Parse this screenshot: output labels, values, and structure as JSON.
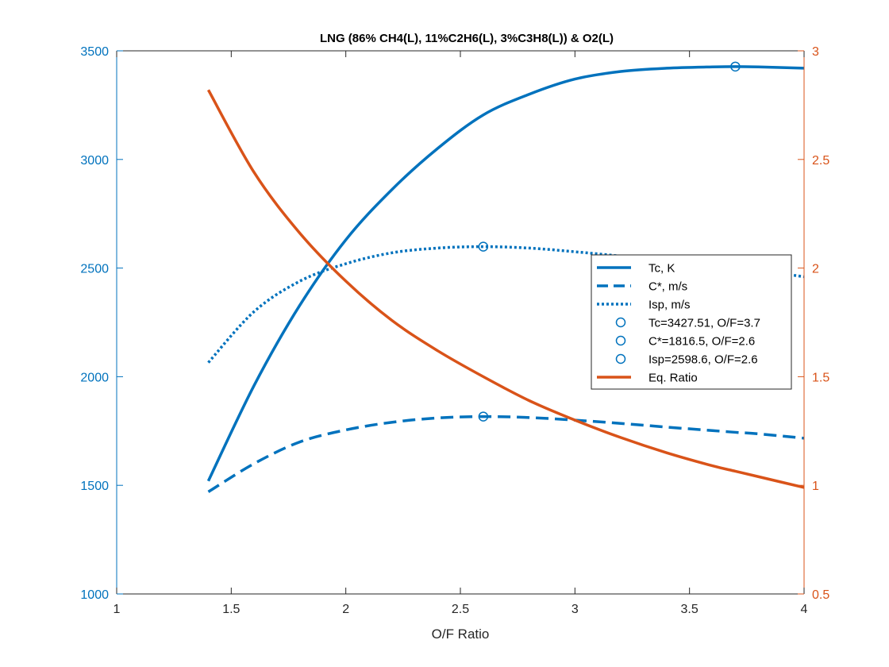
{
  "chart_data": {
    "type": "line",
    "title": "LNG (86% CH4(L), 11%C2H6(L), 3%C3H8(L)) & O2(L)",
    "xlabel": "O/F Ratio",
    "ylabel_left": "",
    "ylabel_right": "",
    "xlim": [
      1,
      4
    ],
    "ylim_left": [
      1000,
      3500
    ],
    "ylim_right": [
      0.5,
      3
    ],
    "x_ticks": [
      "1",
      "1.5",
      "2",
      "2.5",
      "3",
      "3.5",
      "4"
    ],
    "y_left_ticks": [
      "1000",
      "1500",
      "2000",
      "2500",
      "3000",
      "3500"
    ],
    "y_right_ticks": [
      "0.5",
      "1",
      "1.5",
      "2",
      "2.5",
      "3"
    ],
    "grid": false,
    "legend_position": "right-middle",
    "colors": {
      "blue": "#0072BD",
      "orange": "#D95319",
      "axis": "#262626"
    },
    "x": [
      1.4,
      1.6,
      1.8,
      2.0,
      2.2,
      2.4,
      2.6,
      2.8,
      3.0,
      3.2,
      3.4,
      3.6,
      3.7,
      3.8,
      4.0
    ],
    "series": [
      {
        "name": "Tc, K",
        "axis": "left",
        "style": "solid",
        "color": "#0072BD",
        "values": [
          1520,
          1960,
          2330,
          2630,
          2860,
          3050,
          3205,
          3300,
          3370,
          3405,
          3420,
          3426,
          3427.51,
          3426,
          3420
        ]
      },
      {
        "name": "C*, m/s",
        "axis": "left",
        "style": "dashed",
        "color": "#0072BD",
        "values": [
          1470,
          1600,
          1700,
          1755,
          1790,
          1810,
          1816.5,
          1812,
          1800,
          1785,
          1768,
          1752,
          1744,
          1737,
          1717
        ]
      },
      {
        "name": "Isp, m/s",
        "axis": "left",
        "style": "dotted",
        "color": "#0072BD",
        "values": [
          2065,
          2300,
          2440,
          2520,
          2570,
          2592,
          2598.6,
          2592,
          2575,
          2555,
          2532,
          2510,
          2500,
          2490,
          2460
        ]
      },
      {
        "name": "Eq. Ratio",
        "axis": "right",
        "style": "solid",
        "color": "#D95319",
        "values": [
          2.82,
          2.44,
          2.16,
          1.94,
          1.76,
          1.62,
          1.5,
          1.39,
          1.3,
          1.22,
          1.15,
          1.09,
          1.065,
          1.04,
          0.99
        ]
      }
    ],
    "markers": [
      {
        "name": "Tc=3427.51, O/F=3.7",
        "x": 3.7,
        "y": 3427.51,
        "axis": "left"
      },
      {
        "name": "C*=1816.5, O/F=2.6",
        "x": 2.6,
        "y": 1816.5,
        "axis": "left"
      },
      {
        "name": "Isp=2598.6, O/F=2.6",
        "x": 2.6,
        "y": 2598.6,
        "axis": "left"
      }
    ],
    "legend": [
      {
        "label": "Tc, K",
        "kind": "line",
        "style": "solid",
        "color": "#0072BD"
      },
      {
        "label": "C*, m/s",
        "kind": "line",
        "style": "dashed",
        "color": "#0072BD"
      },
      {
        "label": "Isp, m/s",
        "kind": "line",
        "style": "dotted",
        "color": "#0072BD"
      },
      {
        "label": "Tc=3427.51, O/F=3.7",
        "kind": "marker",
        "color": "#0072BD"
      },
      {
        "label": "C*=1816.5, O/F=2.6",
        "kind": "marker",
        "color": "#0072BD"
      },
      {
        "label": "Isp=2598.6, O/F=2.6",
        "kind": "marker",
        "color": "#0072BD"
      },
      {
        "label": "Eq. Ratio",
        "kind": "line",
        "style": "solid",
        "color": "#D95319"
      }
    ]
  }
}
